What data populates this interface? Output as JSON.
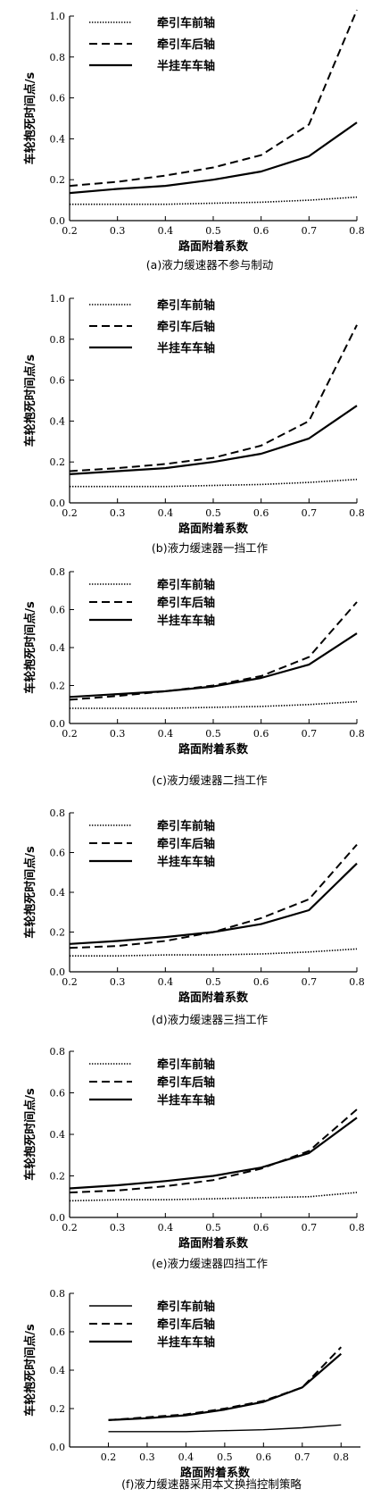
{
  "chart_data": [
    {
      "type": "line",
      "caption": "(a)液力缓速器不参与制动",
      "xlabel": "路面附着系数",
      "ylabel": "车轮抱死时间点/s",
      "x": [
        0.2,
        0.3,
        0.4,
        0.5,
        0.6,
        0.7,
        0.8
      ],
      "xlim": [
        0.2,
        0.8
      ],
      "ylim": [
        0.0,
        1.0
      ],
      "xticks": [
        "0.2",
        "0.3",
        "0.4",
        "0.5",
        "0.6",
        "0.7",
        "0.8"
      ],
      "yticks": [
        "0.0",
        "0.2",
        "0.4",
        "0.6",
        "0.8",
        "1.0"
      ],
      "series": [
        {
          "name": "牵引车前轴",
          "style": "dotted",
          "values": [
            0.08,
            0.08,
            0.08,
            0.085,
            0.09,
            0.1,
            0.115
          ]
        },
        {
          "name": "牵引车后轴",
          "style": "dashed",
          "values": [
            0.17,
            0.19,
            0.22,
            0.26,
            0.32,
            0.47,
            1.03
          ]
        },
        {
          "name": "半挂车车轴",
          "style": "solid",
          "values": [
            0.135,
            0.155,
            0.17,
            0.2,
            0.24,
            0.315,
            0.48
          ]
        }
      ],
      "legend": "top-left",
      "grid": false
    },
    {
      "type": "line",
      "caption": "(b)液力缓速器一挡工作",
      "xlabel": "路面附着系数",
      "ylabel": "车轮抱死时间点/s",
      "x": [
        0.2,
        0.3,
        0.4,
        0.5,
        0.6,
        0.7,
        0.8
      ],
      "xlim": [
        0.2,
        0.8
      ],
      "ylim": [
        0.0,
        1.0
      ],
      "xticks": [
        "0.2",
        "0.3",
        "0.4",
        "0.5",
        "0.6",
        "0.7",
        "0.8"
      ],
      "yticks": [
        "0.0",
        "0.2",
        "0.4",
        "0.6",
        "0.8",
        "1.0"
      ],
      "series": [
        {
          "name": "牵引车前轴",
          "style": "dotted",
          "values": [
            0.08,
            0.08,
            0.08,
            0.085,
            0.09,
            0.1,
            0.115
          ]
        },
        {
          "name": "牵引车后轴",
          "style": "dashed",
          "values": [
            0.155,
            0.17,
            0.19,
            0.22,
            0.28,
            0.4,
            0.87
          ]
        },
        {
          "name": "半挂车车轴",
          "style": "solid",
          "values": [
            0.14,
            0.155,
            0.17,
            0.2,
            0.24,
            0.315,
            0.475
          ]
        }
      ],
      "legend": "top-left",
      "grid": false
    },
    {
      "type": "line",
      "caption": "(c)液力缓速器二挡工作",
      "xlabel": "路面附着系数",
      "ylabel": "车轮抱死时间点/s",
      "x": [
        0.2,
        0.3,
        0.4,
        0.5,
        0.6,
        0.7,
        0.8
      ],
      "xlim": [
        0.2,
        0.8
      ],
      "ylim": [
        0.0,
        0.8
      ],
      "xticks": [
        "0.2",
        "0.3",
        "0.4",
        "0.5",
        "0.6",
        "0.7",
        "0.8"
      ],
      "yticks": [
        "0.0",
        "0.2",
        "0.4",
        "0.6",
        "0.8"
      ],
      "series": [
        {
          "name": "牵引车前轴",
          "style": "dotted",
          "values": [
            0.08,
            0.08,
            0.08,
            0.085,
            0.09,
            0.1,
            0.115
          ]
        },
        {
          "name": "牵引车后轴",
          "style": "dashed",
          "values": [
            0.125,
            0.145,
            0.17,
            0.2,
            0.25,
            0.35,
            0.64
          ]
        },
        {
          "name": "半挂车车轴",
          "style": "solid",
          "values": [
            0.14,
            0.155,
            0.17,
            0.195,
            0.24,
            0.31,
            0.475
          ]
        }
      ],
      "legend": "top-left",
      "grid": false
    },
    {
      "type": "line",
      "caption": "(d)液力缓速器三挡工作",
      "xlabel": "路面附着系数",
      "ylabel": "车轮抱死时间点/s",
      "x": [
        0.2,
        0.3,
        0.4,
        0.5,
        0.6,
        0.7,
        0.8
      ],
      "xlim": [
        0.2,
        0.8
      ],
      "ylim": [
        0.0,
        0.8
      ],
      "xticks": [
        "0.2",
        "0.3",
        "0.4",
        "0.5",
        "0.6",
        "0.7",
        "0.8"
      ],
      "yticks": [
        "0.0",
        "0.2",
        "0.4",
        "0.6",
        "0.8"
      ],
      "series": [
        {
          "name": "牵引车前轴",
          "style": "dotted",
          "values": [
            0.08,
            0.08,
            0.085,
            0.085,
            0.09,
            0.1,
            0.115
          ]
        },
        {
          "name": "牵引车后轴",
          "style": "dashed",
          "values": [
            0.12,
            0.13,
            0.155,
            0.2,
            0.27,
            0.365,
            0.64
          ]
        },
        {
          "name": "半挂车车轴",
          "style": "solid",
          "values": [
            0.14,
            0.155,
            0.175,
            0.2,
            0.24,
            0.31,
            0.545
          ]
        }
      ],
      "legend": "top-left",
      "grid": false
    },
    {
      "type": "line",
      "caption": "(e)液力缓速器四挡工作",
      "xlabel": "路面附着系数",
      "ylabel": "车轮抱死时间点/s",
      "x": [
        0.2,
        0.3,
        0.4,
        0.5,
        0.6,
        0.7,
        0.8
      ],
      "xlim": [
        0.2,
        0.8
      ],
      "ylim": [
        0.0,
        0.8
      ],
      "xticks": [
        "0.2",
        "0.3",
        "0.4",
        "0.5",
        "0.6",
        "0.7",
        "0.8"
      ],
      "yticks": [
        "0.0",
        "0.2",
        "0.4",
        "0.6",
        "0.8"
      ],
      "series": [
        {
          "name": "牵引车前轴",
          "style": "dotted",
          "values": [
            0.08,
            0.085,
            0.085,
            0.09,
            0.095,
            0.1,
            0.12
          ]
        },
        {
          "name": "牵引车后轴",
          "style": "dashed",
          "values": [
            0.12,
            0.13,
            0.15,
            0.18,
            0.235,
            0.32,
            0.52
          ]
        },
        {
          "name": "半挂车车轴",
          "style": "solid",
          "values": [
            0.14,
            0.155,
            0.175,
            0.2,
            0.24,
            0.31,
            0.48
          ]
        }
      ],
      "legend": "top-left",
      "grid": false
    },
    {
      "type": "line",
      "caption": "(f)液力缓速器采用本文换挡控制策略",
      "xlabel": "路面附着系数",
      "ylabel": "车轮抱死时间点/s",
      "x": [
        0.2,
        0.3,
        0.4,
        0.5,
        0.6,
        0.7,
        0.8
      ],
      "xlim": [
        0.1,
        0.85
      ],
      "ylim": [
        0.0,
        0.8
      ],
      "xticks": [
        "0.2",
        "0.3",
        "0.4",
        "0.5",
        "0.6",
        "0.7",
        "0.8"
      ],
      "yticks": [
        "0.0",
        "0.2",
        "0.4",
        "0.6",
        "0.8"
      ],
      "series": [
        {
          "name": "牵引车前轴",
          "style": "solid-thin",
          "values": [
            0.08,
            0.08,
            0.08,
            0.085,
            0.09,
            0.1,
            0.115
          ]
        },
        {
          "name": "牵引车后轴",
          "style": "dashed",
          "values": [
            0.14,
            0.155,
            0.17,
            0.2,
            0.24,
            0.31,
            0.52
          ]
        },
        {
          "name": "半挂车车轴",
          "style": "solid",
          "values": [
            0.14,
            0.15,
            0.165,
            0.195,
            0.235,
            0.31,
            0.485
          ]
        }
      ],
      "legend": "top-left",
      "grid": false
    }
  ]
}
